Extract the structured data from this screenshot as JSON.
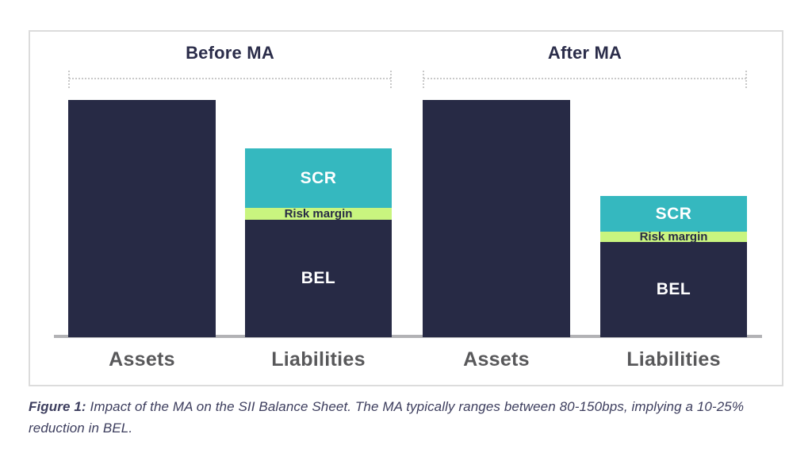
{
  "caption": {
    "label": "Figure 1:",
    "text": " Impact of the MA on the SII Balance Sheet. The MA typically ranges between 80-150bps, implying a 10-25% reduction in BEL."
  },
  "chart_data": {
    "type": "bar",
    "subtype": "stacked balance-sheet comparison, two panels",
    "unit": "relative units, Assets bar = 100",
    "grid": false,
    "legend": "none (labels inside segments)",
    "ylim": [
      0,
      100
    ],
    "segment_colors": {
      "Assets": {
        "fill": "#272a45",
        "text": "#ffffff"
      },
      "BEL": {
        "fill": "#272a45",
        "text": "#ffffff"
      },
      "Risk margin": {
        "fill": "#c9f57f",
        "text": "#272a45"
      },
      "SCR": {
        "fill": "#35b8bf",
        "text": "#ffffff"
      }
    },
    "axis_line_color": "#b2b2b5",
    "title_color": "#2b2d4a",
    "axis_label_color": "#58585a",
    "panels": [
      {
        "title": "Before MA",
        "categories": [
          "Assets",
          "Liabilities"
        ],
        "assets_value": 100,
        "liabilities_segments": [
          {
            "label": "BEL",
            "value": 49.5
          },
          {
            "label": "Risk margin",
            "value": 5
          },
          {
            "label": "SCR",
            "value": 25
          }
        ]
      },
      {
        "title": "After MA",
        "categories": [
          "Assets",
          "Liabilities"
        ],
        "assets_value": 100,
        "liabilities_segments": [
          {
            "label": "BEL",
            "value": 40
          },
          {
            "label": "Risk margin",
            "value": 4.5
          },
          {
            "label": "SCR",
            "value": 15
          }
        ]
      }
    ]
  }
}
